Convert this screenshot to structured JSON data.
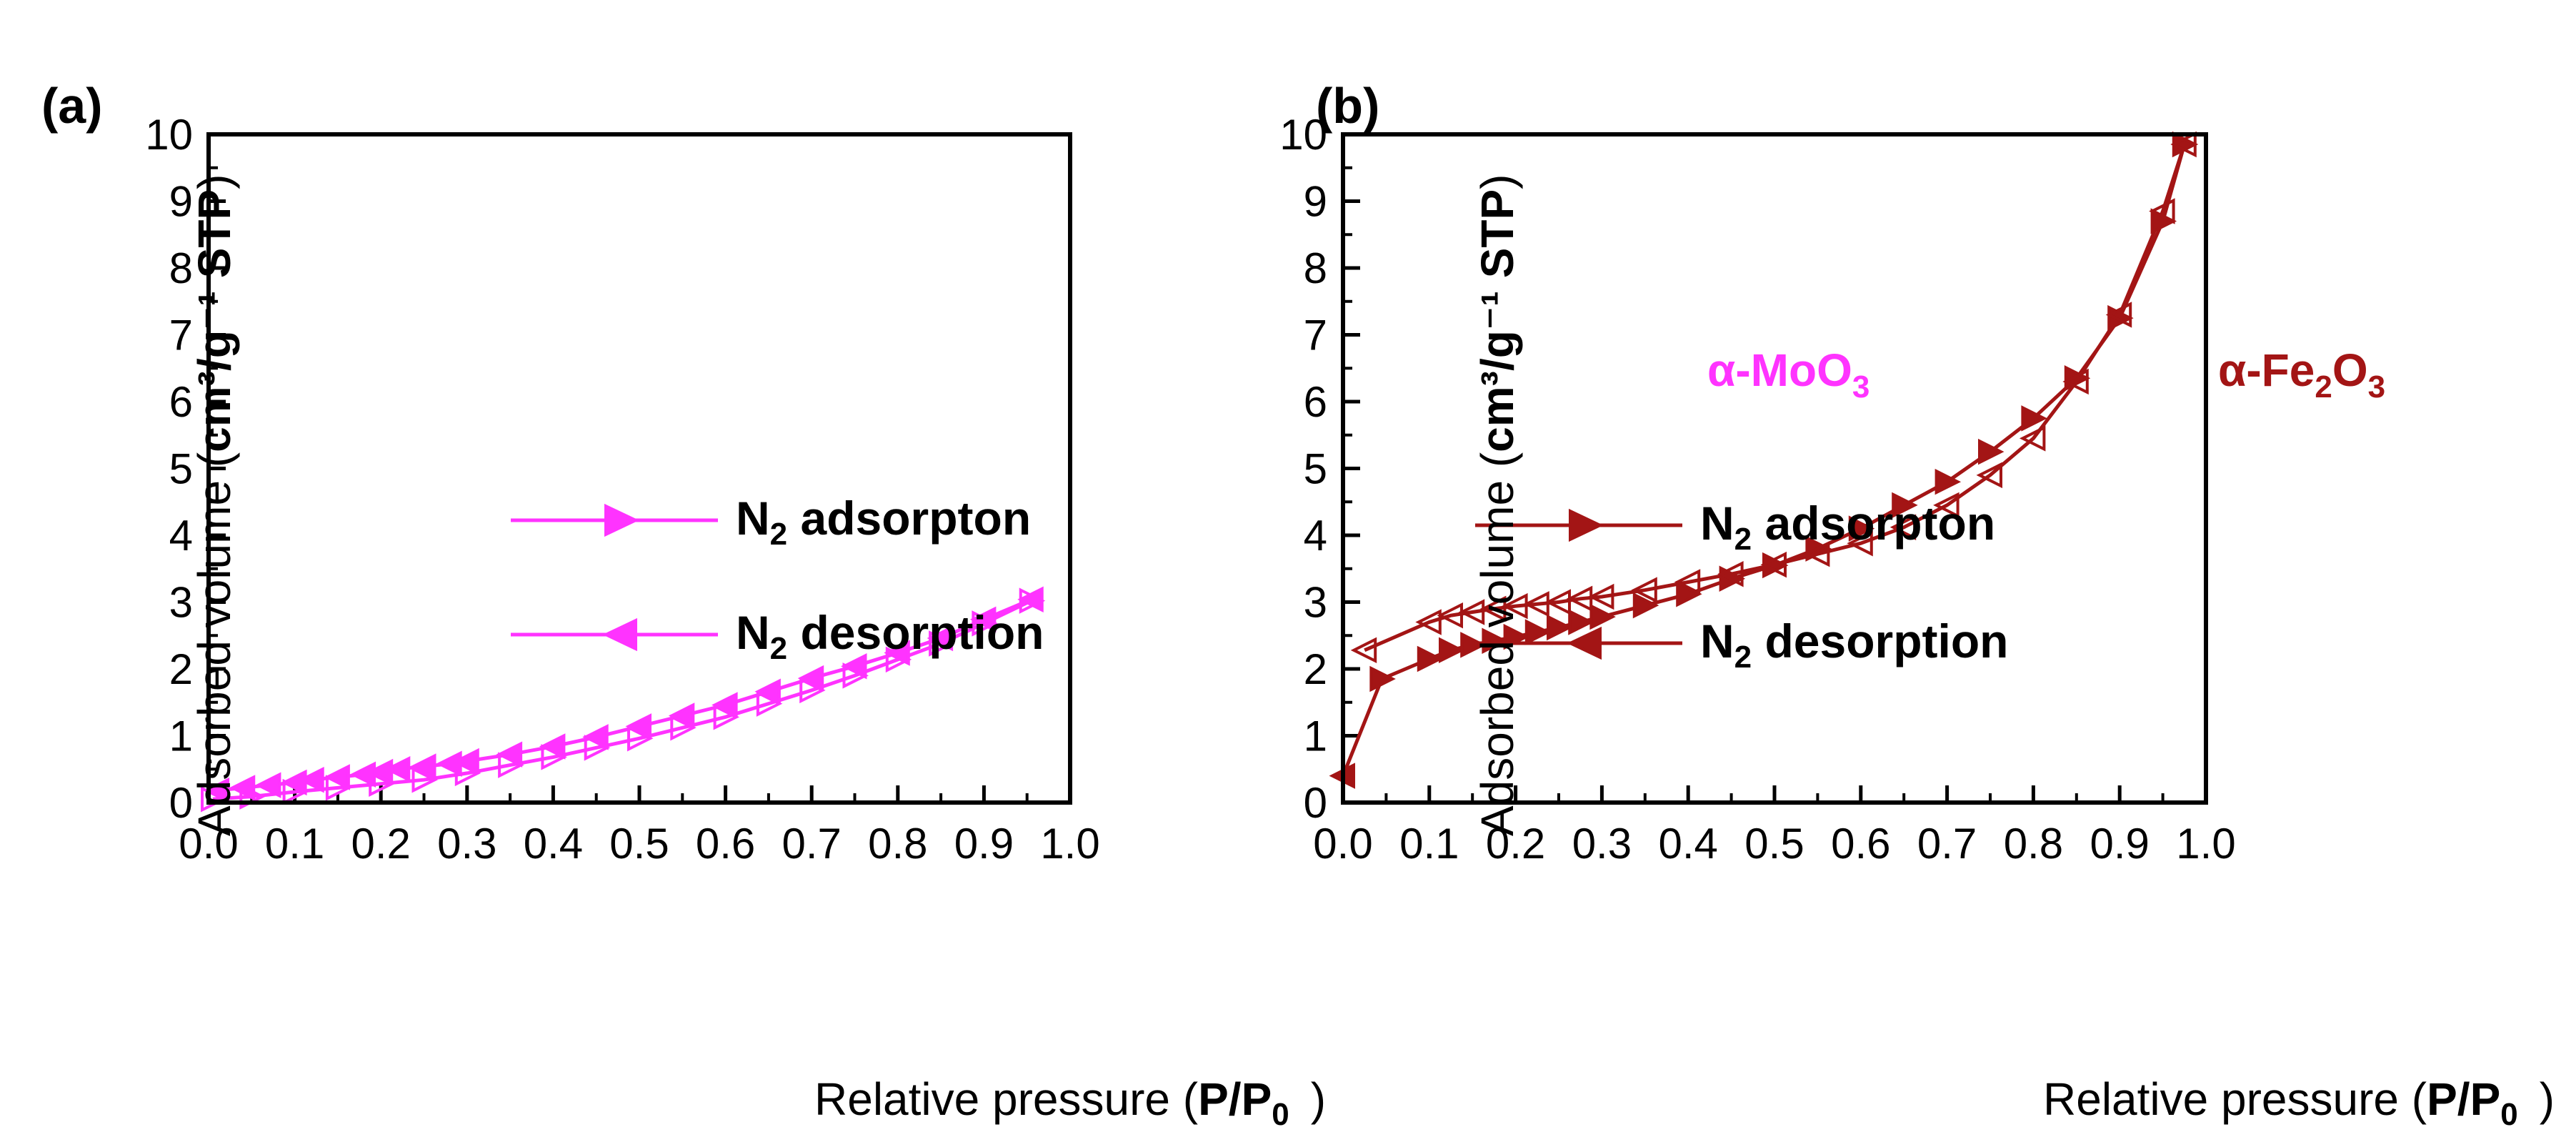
{
  "chart_data": [
    {
      "panel_label": "(a)",
      "type": "line",
      "sample_label": "α-MoO",
      "sample_sub": "3",
      "color": "#ff33ff",
      "xlabel": "Relative pressure (",
      "xlabel_bold": "P/P",
      "xlabel_sub": "0",
      "xlabel_end": ")",
      "ylabel": "Adsorbed volume (",
      "ylabel_bold": "cm³/g⁻¹ STP",
      "ylabel_end": ")",
      "xlim": [
        0.0,
        1.0
      ],
      "ylim": [
        0,
        10
      ],
      "xticks": [
        "0.0",
        "0.1",
        "0.2",
        "0.3",
        "0.4",
        "0.5",
        "0.6",
        "0.7",
        "0.8",
        "0.9",
        "1.0"
      ],
      "yticks": [
        "0",
        "1",
        "2",
        "3",
        "4",
        "5",
        "6",
        "7",
        "8",
        "9",
        "10"
      ],
      "legend": [
        {
          "label": "N",
          "sub": "2",
          "rest": " adsorpton",
          "marker": "right"
        },
        {
          "label": "N",
          "sub": "2",
          "rest": " desorption",
          "marker": "left"
        }
      ],
      "series": [
        {
          "name": "N2 adsorpton",
          "marker": "right",
          "x": [
            0.005,
            0.05,
            0.1,
            0.15,
            0.2,
            0.25,
            0.3,
            0.35,
            0.4,
            0.45,
            0.5,
            0.55,
            0.6,
            0.65,
            0.7,
            0.75,
            0.8,
            0.85,
            0.9,
            0.955
          ],
          "y": [
            0.05,
            0.09,
            0.16,
            0.22,
            0.28,
            0.34,
            0.44,
            0.56,
            0.68,
            0.82,
            0.96,
            1.12,
            1.28,
            1.48,
            1.68,
            1.9,
            2.14,
            2.38,
            2.68,
            3.02
          ]
        },
        {
          "name": "N2 desorption",
          "marker": "left",
          "x": [
            0.955,
            0.9,
            0.85,
            0.8,
            0.75,
            0.7,
            0.65,
            0.6,
            0.55,
            0.5,
            0.45,
            0.4,
            0.35,
            0.3,
            0.28,
            0.25,
            0.22,
            0.2,
            0.18,
            0.15,
            0.12,
            0.1,
            0.07,
            0.04,
            0.01
          ],
          "y": [
            3.04,
            2.74,
            2.46,
            2.24,
            2.04,
            1.86,
            1.66,
            1.46,
            1.3,
            1.14,
            0.98,
            0.84,
            0.72,
            0.62,
            0.58,
            0.54,
            0.5,
            0.46,
            0.42,
            0.38,
            0.34,
            0.3,
            0.26,
            0.22,
            0.18
          ]
        }
      ]
    },
    {
      "panel_label": "(b)",
      "type": "line",
      "sample_label": "α-Fe",
      "sample_sub": "2",
      "sample_mid": "O",
      "sample_sub2": "3",
      "color": "#a31515",
      "xlabel": "Relative pressure (",
      "xlabel_bold": "P/P",
      "xlabel_sub": "0",
      "xlabel_end": ")",
      "ylabel": "Adsorbed volume (",
      "ylabel_bold": "cm³/g⁻¹ STP",
      "ylabel_end": ")",
      "xlim": [
        0.0,
        1.0
      ],
      "ylim": [
        0,
        10
      ],
      "xticks": [
        "0.0",
        "0.1",
        "0.2",
        "0.3",
        "0.4",
        "0.5",
        "0.6",
        "0.7",
        "0.8",
        "0.9",
        "1.0"
      ],
      "yticks": [
        "0",
        "1",
        "2",
        "3",
        "4",
        "5",
        "6",
        "7",
        "8",
        "9",
        "10"
      ],
      "legend": [
        {
          "label": "N",
          "sub": "2",
          "rest": " adsorpton",
          "marker": "right"
        },
        {
          "label": "N",
          "sub": "2",
          "rest": " desorption",
          "marker": "left"
        }
      ],
      "series": [
        {
          "name": "N2 adsorpton",
          "marker": "right",
          "x": [
            0.0,
            0.045,
            0.1,
            0.125,
            0.15,
            0.175,
            0.2,
            0.225,
            0.25,
            0.275,
            0.3,
            0.35,
            0.4,
            0.45,
            0.5,
            0.55,
            0.6,
            0.65,
            0.7,
            0.75,
            0.8,
            0.85,
            0.9,
            0.95,
            0.975
          ],
          "y": [
            0.4,
            1.85,
            2.15,
            2.28,
            2.36,
            2.42,
            2.48,
            2.55,
            2.62,
            2.7,
            2.78,
            2.95,
            3.12,
            3.35,
            3.55,
            3.8,
            4.1,
            4.45,
            4.8,
            5.25,
            5.75,
            6.35,
            7.25,
            8.7,
            9.85
          ],
          "start_marker": "left"
        },
        {
          "name": "N2 desorption",
          "marker": "left",
          "x": [
            0.975,
            0.95,
            0.9,
            0.85,
            0.8,
            0.75,
            0.7,
            0.65,
            0.6,
            0.55,
            0.5,
            0.45,
            0.4,
            0.35,
            0.3,
            0.275,
            0.25,
            0.225,
            0.2,
            0.175,
            0.15,
            0.125,
            0.1,
            0.025
          ],
          "y": [
            9.85,
            8.85,
            7.3,
            6.3,
            5.45,
            4.9,
            4.45,
            4.12,
            3.88,
            3.72,
            3.56,
            3.42,
            3.3,
            3.18,
            3.08,
            3.05,
            3.0,
            2.97,
            2.94,
            2.9,
            2.85,
            2.8,
            2.7,
            2.28
          ]
        }
      ]
    }
  ]
}
